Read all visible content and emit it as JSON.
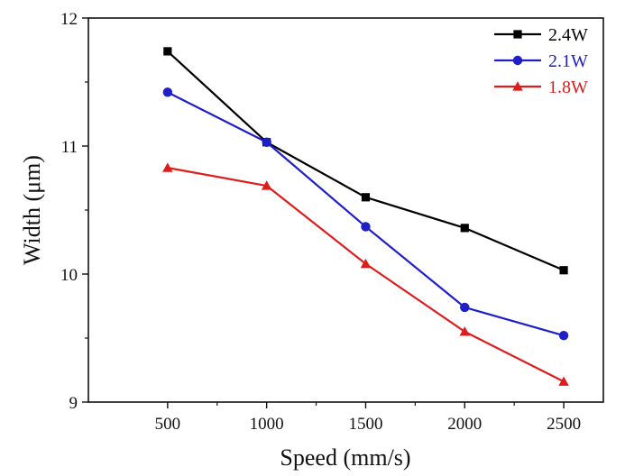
{
  "chart_data": {
    "type": "line",
    "title": "",
    "xlabel": "Speed (mm/s)",
    "ylabel": "Width (μm)",
    "x": [
      500,
      1000,
      1500,
      2000,
      2500
    ],
    "xticks": [
      "500",
      "1000",
      "1500",
      "2000",
      "2500"
    ],
    "yticks": [
      "9",
      "10",
      "11",
      "12"
    ],
    "xlim": [
      100,
      2700
    ],
    "ylim": [
      9,
      12
    ],
    "grid": false,
    "legend_position": "top-right",
    "series": [
      {
        "name": "2.4W",
        "color": "#000000",
        "marker": "square",
        "values": [
          11.74,
          11.03,
          10.6,
          10.36,
          10.03
        ]
      },
      {
        "name": "2.1W",
        "color": "#1f1fc8",
        "marker": "circle",
        "values": [
          11.42,
          11.03,
          10.37,
          9.74,
          9.52
        ]
      },
      {
        "name": "1.8W",
        "color": "#dd1c1c",
        "marker": "triangle",
        "values": [
          10.83,
          10.69,
          10.08,
          9.55,
          9.16
        ]
      }
    ]
  }
}
